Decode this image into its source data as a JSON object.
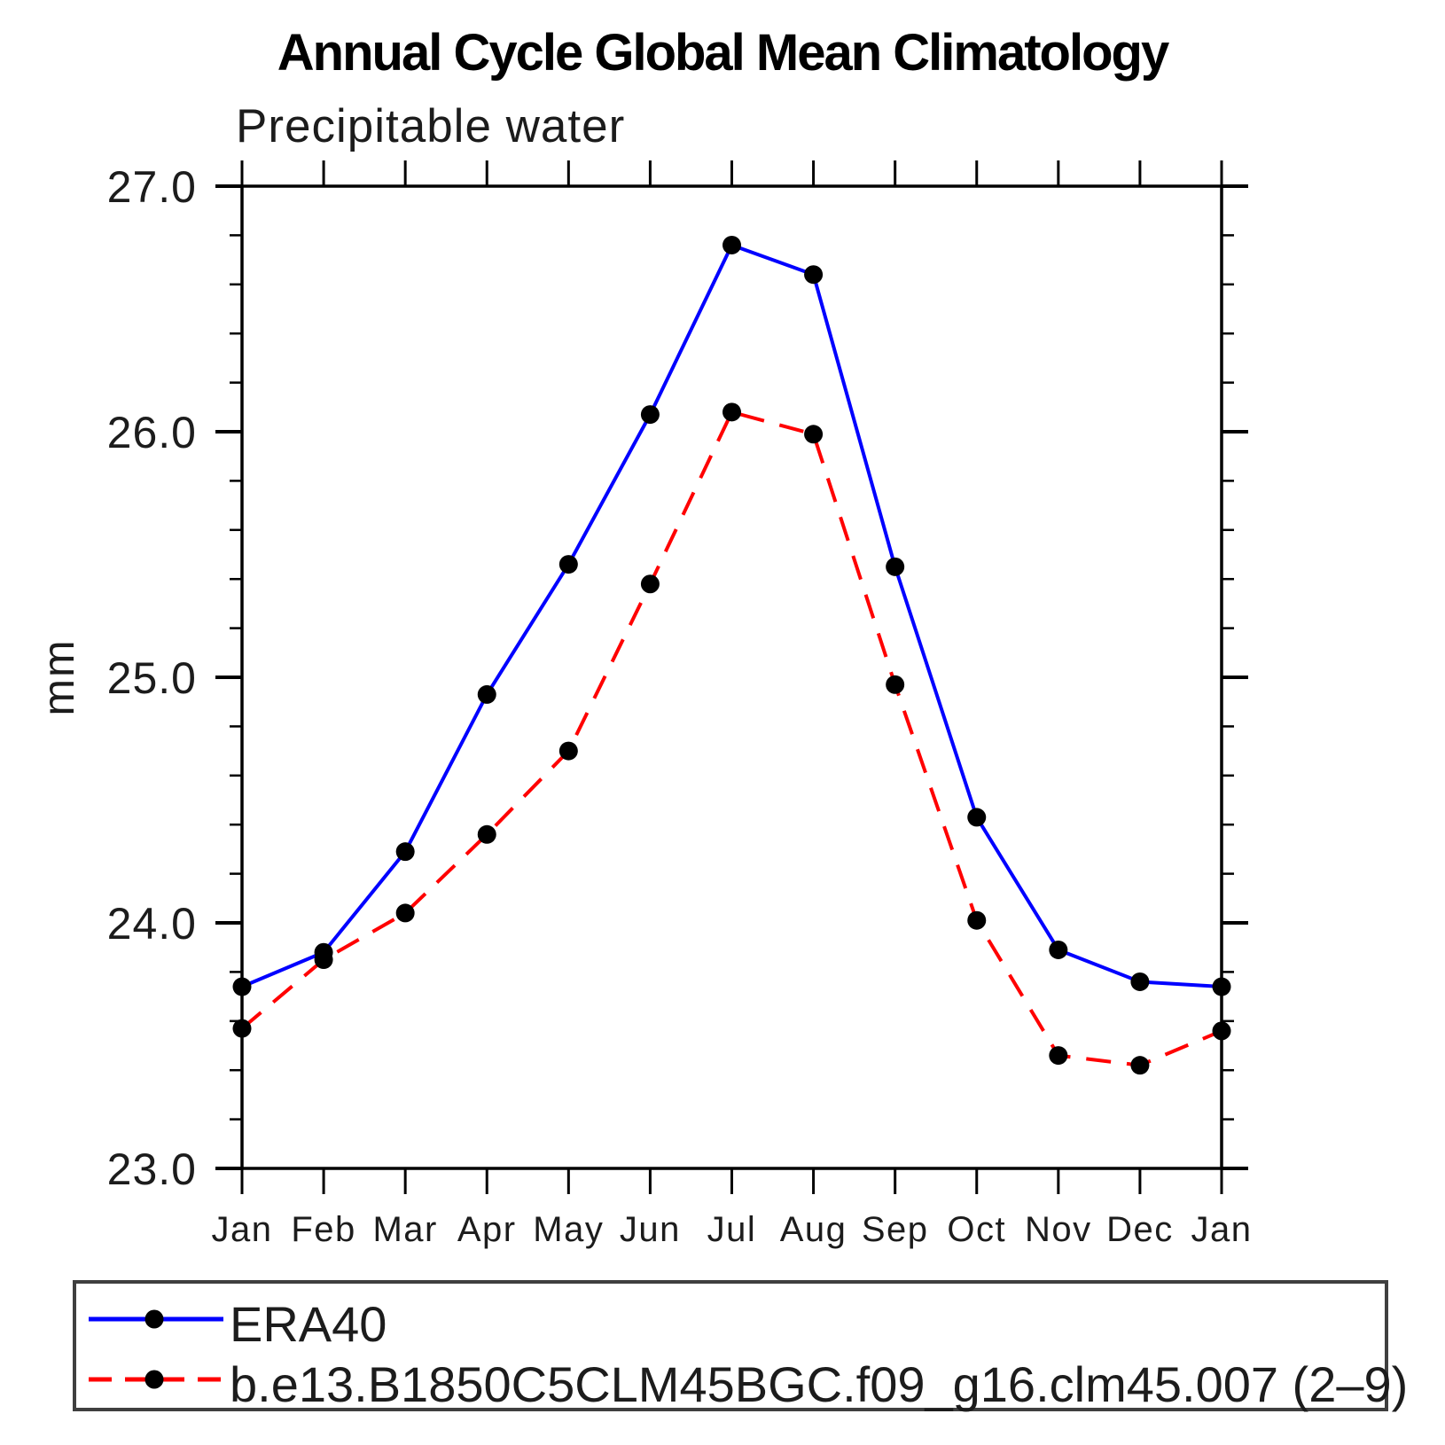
{
  "chart_data": {
    "type": "line",
    "title": "Annual Cycle Global Mean Climatology",
    "subtitle": "Precipitable water",
    "ylabel": "mm",
    "ylim": [
      23.0,
      27.0
    ],
    "ytick_major": [
      23.0,
      24.0,
      25.0,
      26.0,
      27.0
    ],
    "ytick_major_labels": [
      "23.0",
      "24.0",
      "25.0",
      "26.0",
      "27.0"
    ],
    "ytick_minor_step": 0.2,
    "grid": false,
    "legend_position": "bottom",
    "categories": [
      "Jan",
      "Feb",
      "Mar",
      "Apr",
      "May",
      "Jun",
      "Jul",
      "Aug",
      "Sep",
      "Oct",
      "Nov",
      "Dec",
      "Jan"
    ],
    "series": [
      {
        "name": "ERA40",
        "color": "#0000ff",
        "line_style": "solid",
        "marker": "circle",
        "marker_color": "#000000",
        "values": [
          23.74,
          23.88,
          24.29,
          24.93,
          25.46,
          26.07,
          26.76,
          26.64,
          25.45,
          24.43,
          23.89,
          23.76,
          23.74
        ]
      },
      {
        "name": "b.e13.B1850C5CLM45BGC.f09_g16.clm45.007 (2–9)",
        "color": "#ff0000",
        "line_style": "dashed",
        "marker": "circle",
        "marker_color": "#000000",
        "values": [
          23.57,
          23.85,
          24.04,
          24.36,
          24.7,
          25.38,
          26.08,
          25.99,
          24.97,
          24.01,
          23.46,
          23.42,
          23.56
        ]
      }
    ]
  },
  "colors": {
    "axis": "#000000",
    "text": "#1c1c1c",
    "legend_border": "#3f3f3f",
    "background": "#ffffff"
  }
}
